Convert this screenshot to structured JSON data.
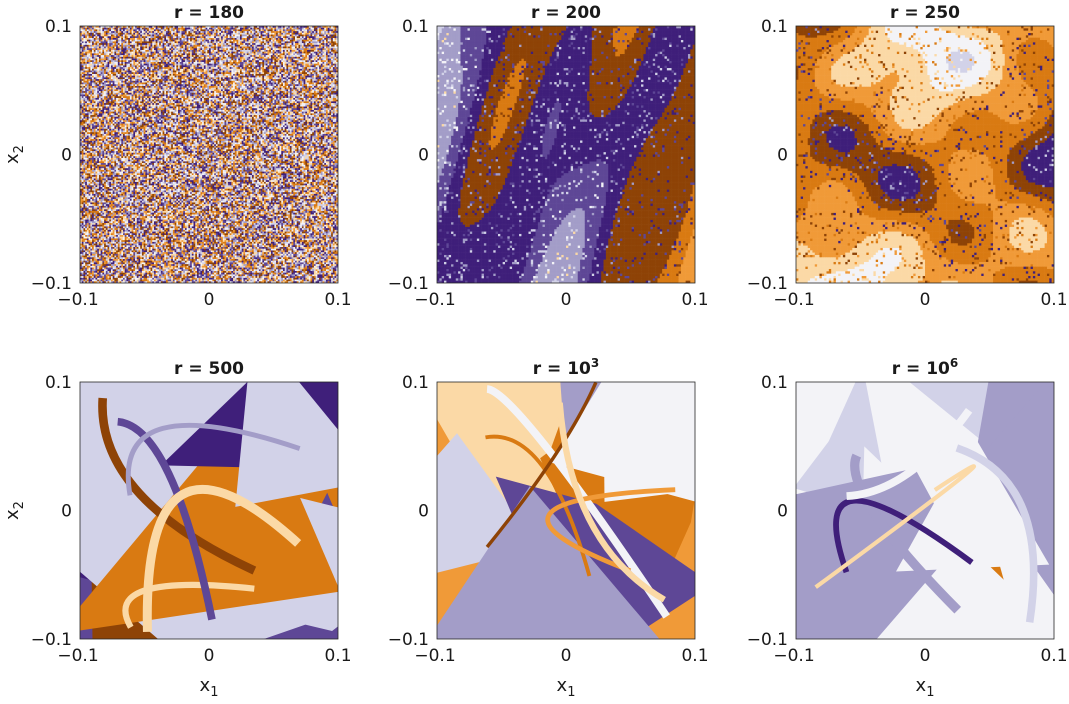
{
  "palette": [
    "#3f1f7a",
    "#5e4796",
    "#a39dc8",
    "#d2d2e8",
    "#f3f3f7",
    "#fbd9a6",
    "#f09a38",
    "#d97a12",
    "#8e4306"
  ],
  "chart_data": [
    {
      "type": "heatmap",
      "title": {
        "prefix": "r = ",
        "base": "180",
        "exp": ""
      },
      "xlim": [
        -0.1,
        0.1
      ],
      "ylim": [
        -0.1,
        0.1
      ],
      "xticks": [
        "−0.1",
        "0",
        "0.1"
      ],
      "yticks": [
        "0.1",
        "0",
        "−0.1"
      ],
      "xlabel": {
        "base": "",
        "sub": ""
      },
      "ylabel": {
        "base": "x",
        "sub": "2"
      },
      "pattern": "noise",
      "cells": 150,
      "seed": 11
    },
    {
      "type": "heatmap",
      "title": {
        "prefix": "r = ",
        "base": "200",
        "exp": ""
      },
      "xlim": [
        -0.1,
        0.1
      ],
      "ylim": [
        -0.1,
        0.1
      ],
      "xticks": [
        "−0.1",
        "0",
        "0.1"
      ],
      "yticks": [
        "0.1",
        "0",
        "−0.1"
      ],
      "xlabel": {
        "base": "",
        "sub": ""
      },
      "ylabel": {
        "base": "",
        "sub": ""
      },
      "pattern": "swirl",
      "cells": 110,
      "seed": 23
    },
    {
      "type": "heatmap",
      "title": {
        "prefix": "r = ",
        "base": "250",
        "exp": ""
      },
      "xlim": [
        -0.1,
        0.1
      ],
      "ylim": [
        -0.1,
        0.1
      ],
      "xticks": [
        "−0.1",
        "0",
        "0.1"
      ],
      "yticks": [
        "0.1",
        "0",
        "−0.1"
      ],
      "xlabel": {
        "base": "",
        "sub": ""
      },
      "ylabel": {
        "base": "",
        "sub": ""
      },
      "pattern": "swirl",
      "cells": 110,
      "seed": 37
    },
    {
      "type": "heatmap",
      "title": {
        "prefix": "r = ",
        "base": "500",
        "exp": ""
      },
      "xlim": [
        -0.1,
        0.1
      ],
      "ylim": [
        -0.1,
        0.1
      ],
      "xticks": [
        "−0.1",
        "0",
        "0.1"
      ],
      "yticks": [
        "0.1",
        "0",
        "−0.1"
      ],
      "xlabel": {
        "base": "x",
        "sub": "1"
      },
      "ylabel": {
        "base": "x",
        "sub": "2"
      },
      "pattern": "regions",
      "seed": 41
    },
    {
      "type": "heatmap",
      "title": {
        "prefix": "r = ",
        "base": "10",
        "exp": "3"
      },
      "xlim": [
        -0.1,
        0.1
      ],
      "ylim": [
        -0.1,
        0.1
      ],
      "xticks": [
        "−0.1",
        "0",
        "0.1"
      ],
      "yticks": [
        "0.1",
        "0",
        "−0.1"
      ],
      "xlabel": {
        "base": "x",
        "sub": "1"
      },
      "ylabel": {
        "base": "",
        "sub": ""
      },
      "pattern": "regions",
      "seed": 53
    },
    {
      "type": "heatmap",
      "title": {
        "prefix": "r = ",
        "base": "10",
        "exp": "6"
      },
      "xlim": [
        -0.1,
        0.1
      ],
      "ylim": [
        -0.1,
        0.1
      ],
      "xticks": [
        "−0.1",
        "0",
        "0.1"
      ],
      "yticks": [
        "0.1",
        "0",
        "−0.1"
      ],
      "xlabel": {
        "base": "x",
        "sub": "1"
      },
      "ylabel": {
        "base": "",
        "sub": ""
      },
      "pattern": "regions",
      "seed": 67
    }
  ]
}
